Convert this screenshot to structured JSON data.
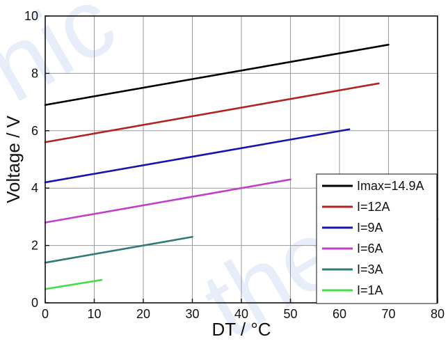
{
  "chart_data": {
    "type": "line",
    "xlabel": "DT / °C",
    "ylabel": "Voltage / V",
    "xlim": [
      0,
      80
    ],
    "ylim": [
      0,
      10
    ],
    "xticks": [
      0,
      10,
      20,
      30,
      40,
      50,
      60,
      70,
      80
    ],
    "yticks": [
      0,
      2,
      4,
      6,
      8,
      10
    ],
    "grid": true,
    "legend_position": "bottom-right",
    "series": [
      {
        "name": "Imax=14.9A",
        "color": "#000000",
        "x": [
          0,
          70
        ],
        "y": [
          6.9,
          9.0
        ]
      },
      {
        "name": "I=12A",
        "color": "#b22222",
        "x": [
          0,
          68
        ],
        "y": [
          5.6,
          7.65
        ]
      },
      {
        "name": "I=9A",
        "color": "#1515b0",
        "x": [
          0,
          62
        ],
        "y": [
          4.2,
          6.05
        ]
      },
      {
        "name": "I=6A",
        "color": "#c040c8",
        "x": [
          0,
          50
        ],
        "y": [
          2.8,
          4.3
        ]
      },
      {
        "name": "I=3A",
        "color": "#2f7a7a",
        "x": [
          0,
          30
        ],
        "y": [
          1.4,
          2.3
        ]
      },
      {
        "name": "I=1A",
        "color": "#44dd44",
        "x": [
          0,
          11.5
        ],
        "y": [
          0.48,
          0.8
        ]
      }
    ]
  }
}
